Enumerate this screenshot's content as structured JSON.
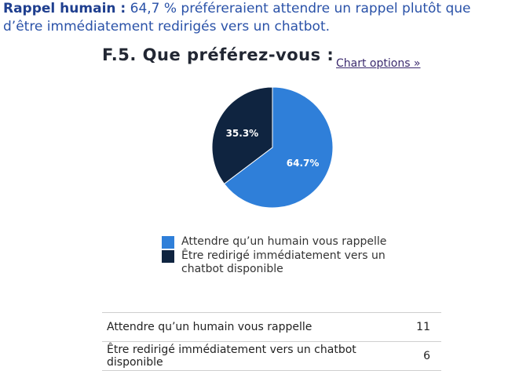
{
  "intro": {
    "lead": "Rappel humain :",
    "text": " 64,7 % préféreraient attendre un rappel plutôt que d’être immédiatement redirigés vers un chatbot."
  },
  "chart_options_label": "Chart options »",
  "chart_data": {
    "type": "pie",
    "title": "F.5. Que préférez-vous :",
    "categories": [
      "Attendre qu’un humain vous rappelle",
      "Être redirigé immédiatement vers un chatbot disponible"
    ],
    "values": [
      11,
      6
    ],
    "percent_labels": [
      "64.7%",
      "35.3%"
    ],
    "colors": [
      "#2f7fd9",
      "#0f2440"
    ],
    "legend_labels": [
      "Attendre qu’un humain vous rappelle",
      "Être redirigé immédiatement vers un chatbot disponible"
    ],
    "legend_position": "bottom"
  },
  "table": {
    "rows": [
      {
        "label": "Attendre qu’un humain vous rappelle",
        "value": "11"
      },
      {
        "label": "Être redirigé immédiatement vers un chatbot disponible",
        "value": "6"
      }
    ]
  }
}
